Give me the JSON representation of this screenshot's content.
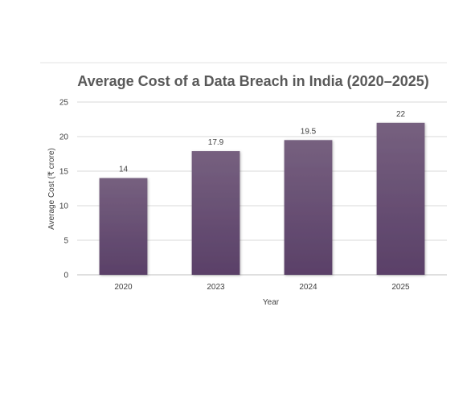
{
  "chart_data": {
    "type": "bar",
    "title": "Average Cost of a Data Breach in India (2020–2025)",
    "xlabel": "Year",
    "ylabel": "Average Cost (₹ crore)",
    "categories": [
      "2020",
      "2023",
      "2024",
      "2025"
    ],
    "values": [
      14,
      17.9,
      19.5,
      22
    ],
    "data_labels": [
      "14",
      "17.9",
      "19.5",
      "22"
    ],
    "ylim": [
      0,
      25
    ],
    "yticks": [
      0,
      5,
      10,
      15,
      20,
      25
    ],
    "grid": true,
    "legend": "none",
    "colors": {
      "bar_top": "#76607f",
      "bar_bottom": "#5a4068",
      "title": "#595959",
      "tick_text": "#404040",
      "grid": "#d9d9d9"
    }
  }
}
